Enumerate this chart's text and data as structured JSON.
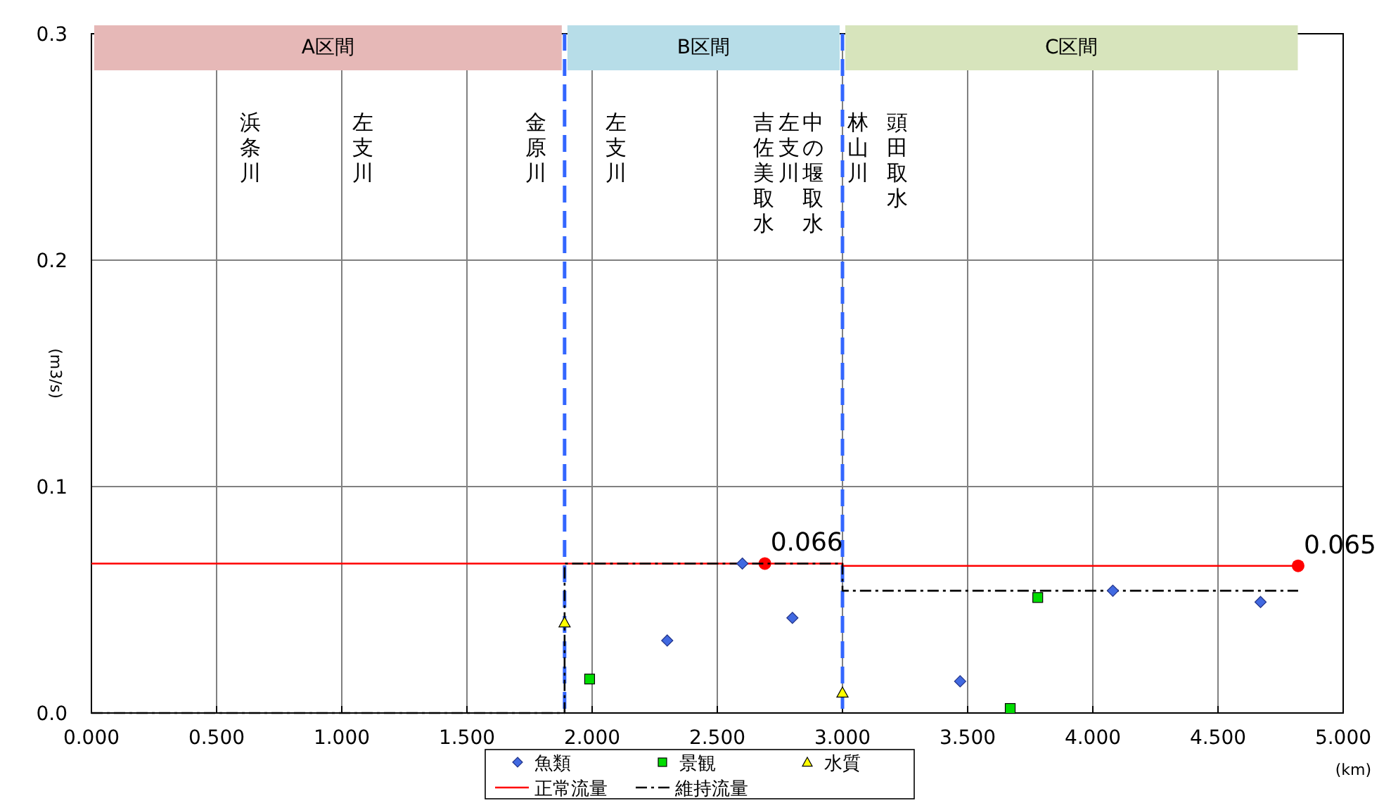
{
  "chart_data": {
    "type": "scatter",
    "xlabel": "(km)",
    "ylabel": "(m3/s)",
    "xlim": [
      0,
      5
    ],
    "xticks": [
      {
        "value": 0,
        "label": "0.000"
      },
      {
        "value": 0.5,
        "label": "0.500"
      },
      {
        "value": 1,
        "label": "1.000"
      },
      {
        "value": 1.5,
        "label": "1.500"
      },
      {
        "value": 2,
        "label": "2.000"
      },
      {
        "value": 2.5,
        "label": "2.500"
      },
      {
        "value": 3,
        "label": "3.000"
      },
      {
        "value": 3.5,
        "label": "3.500"
      },
      {
        "value": 4,
        "label": "4.000"
      },
      {
        "value": 4.5,
        "label": "4.500"
      },
      {
        "value": 5,
        "label": "5.000"
      }
    ],
    "ylim": [
      0,
      0.3
    ],
    "yticks": [
      {
        "value": 0,
        "label": "0.0"
      },
      0.1,
      0.2,
      0.3
    ],
    "grid": true,
    "legend": "bottom",
    "series": [
      {
        "name": "魚類",
        "type": "scatter",
        "marker": "diamond",
        "color": "#4169e1",
        "x": [
          2.3,
          2.6,
          2.8,
          3.47,
          4.08,
          4.67
        ],
        "values": [
          0.032,
          0.066,
          0.042,
          0.014,
          0.054,
          0.049
        ]
      },
      {
        "name": "景観",
        "type": "scatter",
        "marker": "square",
        "color": "#00dd00",
        "x": [
          1.99,
          3.67,
          3.78
        ],
        "values": [
          0.015,
          0.002,
          0.051
        ]
      },
      {
        "name": "水質",
        "type": "scatter",
        "marker": "triangle",
        "color": "#ffff00",
        "x": [
          1.89,
          3.0
        ],
        "values": [
          0.04,
          0.009
        ]
      },
      {
        "name": "正常流量",
        "type": "line",
        "color": "#ff0000",
        "line_style": "solid",
        "x": [
          0,
          2.69,
          3.0,
          3.0,
          4.82
        ],
        "values": [
          0.066,
          0.066,
          0.066,
          0.065,
          0.065
        ],
        "value_labels": [
          null,
          "0.066",
          null,
          null,
          "0.065"
        ]
      },
      {
        "name": "維持流量",
        "type": "line",
        "color": "#000000",
        "line_style": "dashdot",
        "x": [
          0,
          1.89,
          1.89,
          3.0,
          3.0,
          4.82
        ],
        "values": [
          0,
          0,
          0.066,
          0.066,
          0.054,
          0.054
        ]
      }
    ],
    "ref_lines": [
      {
        "axis": "x",
        "value": 1.89,
        "color": "#3366ff",
        "line_style": "dashed"
      },
      {
        "axis": "x",
        "value": 3.0,
        "color": "#3366ff",
        "line_style": "dashed"
      }
    ],
    "bands": [
      {
        "axis": "x",
        "from": 0,
        "to": 1.89,
        "label": "A区間",
        "color": "#e6b8b7"
      },
      {
        "axis": "x",
        "from": 1.89,
        "to": 3.0,
        "label": "B区間",
        "color": "#b7dde8"
      },
      {
        "axis": "x",
        "from": 3.0,
        "to": 4.83,
        "label": "C区間",
        "color": "#d7e4bc"
      }
    ],
    "annotations": [
      "浜条川",
      "左支川",
      "金原川",
      "左支川",
      "吉佐美取水",
      "左支川",
      "中の堰取水",
      "林山川",
      "頭田取水"
    ]
  }
}
